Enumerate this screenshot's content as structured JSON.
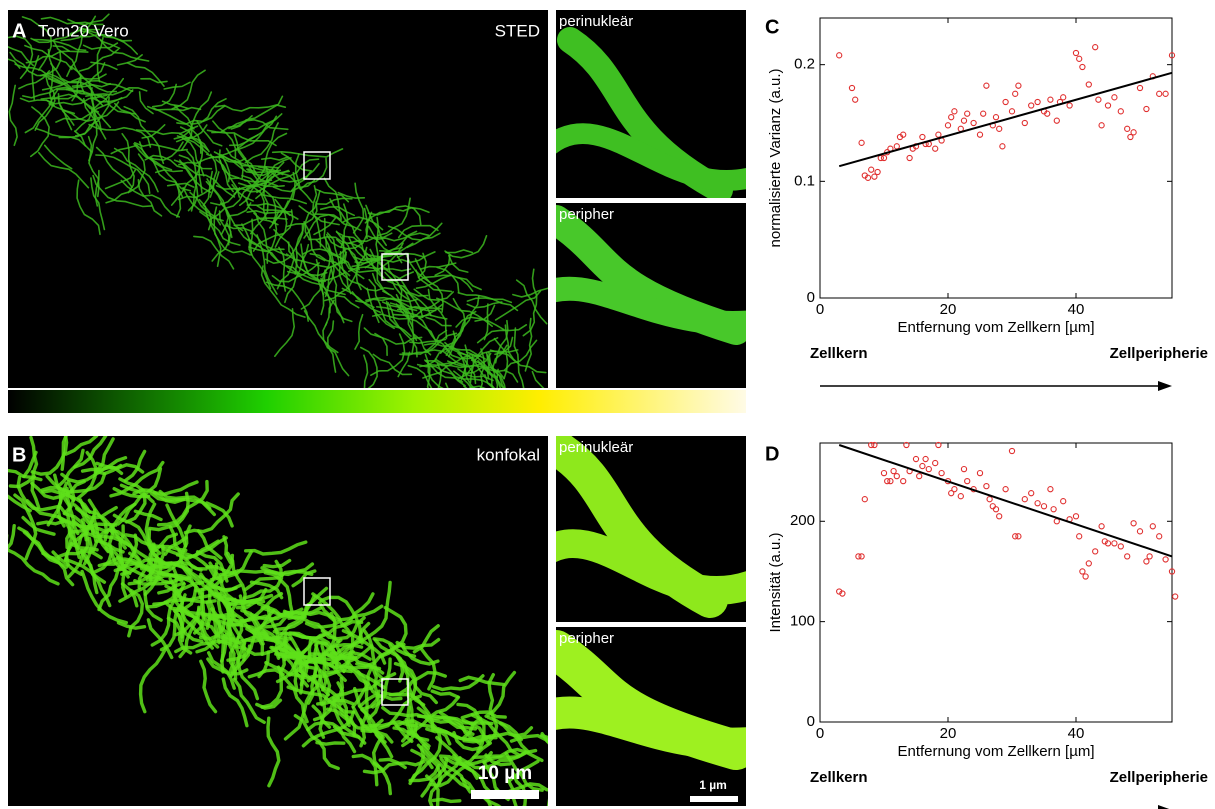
{
  "panels": {
    "A": {
      "letter": "A",
      "title": "Tom20 Vero",
      "method": "STED",
      "inset_top": "perinukleär",
      "inset_bottom": "peripher"
    },
    "B": {
      "letter": "B",
      "method": "konfokal",
      "inset_top": "perinukleär",
      "inset_bottom": "peripher",
      "scale_bar": "10 µm",
      "inset_scale_bar": "1 µm"
    }
  },
  "chart_data": [
    {
      "type": "scatter",
      "panel": "C",
      "x_label": "Entfernung vom Zellkern [µm]",
      "y_label": "normalisierte Varianz (a.u.)",
      "annotations": [
        "Zellkern",
        "Zellperipherie"
      ],
      "xlim": [
        0,
        55
      ],
      "ylim": [
        0,
        0.24
      ],
      "xticks": [
        0,
        20,
        40
      ],
      "yticks": [
        0,
        0.1,
        0.2
      ],
      "color": "#e03030",
      "x": [
        3,
        5,
        5.5,
        6.5,
        7,
        7.5,
        8,
        8.5,
        9,
        9.5,
        10,
        10.5,
        11,
        12,
        12.5,
        13,
        14,
        14.5,
        15,
        16,
        16.5,
        17,
        18,
        18.5,
        19,
        20,
        20.5,
        21,
        22,
        22.5,
        23,
        24,
        25,
        25.5,
        26,
        27,
        27.5,
        28,
        28.5,
        29,
        30,
        30.5,
        31,
        32,
        33,
        34,
        35,
        35.5,
        36,
        37,
        37.5,
        38,
        39,
        40,
        40.5,
        41,
        42,
        43,
        43.5,
        44,
        45,
        46,
        47,
        48,
        48.5,
        49,
        50,
        51,
        52,
        53,
        54,
        55
      ],
      "values": [
        0.208,
        0.18,
        0.17,
        0.133,
        0.105,
        0.103,
        0.11,
        0.104,
        0.108,
        0.12,
        0.12,
        0.125,
        0.128,
        0.13,
        0.138,
        0.14,
        0.12,
        0.128,
        0.13,
        0.138,
        0.132,
        0.132,
        0.128,
        0.14,
        0.135,
        0.148,
        0.155,
        0.16,
        0.145,
        0.152,
        0.158,
        0.15,
        0.14,
        0.158,
        0.182,
        0.148,
        0.155,
        0.145,
        0.13,
        0.168,
        0.16,
        0.175,
        0.182,
        0.15,
        0.165,
        0.168,
        0.16,
        0.158,
        0.17,
        0.152,
        0.168,
        0.172,
        0.165,
        0.21,
        0.205,
        0.198,
        0.183,
        0.215,
        0.17,
        0.148,
        0.165,
        0.172,
        0.16,
        0.145,
        0.138,
        0.142,
        0.18,
        0.162,
        0.19,
        0.175,
        0.175,
        0.208
      ],
      "fit": {
        "x": [
          3,
          55
        ],
        "y": [
          0.113,
          0.193
        ],
        "color": "#000000"
      }
    },
    {
      "type": "scatter",
      "panel": "D",
      "x_label": "Entfernung vom Zellkern [µm]",
      "y_label": "Intensität (a.u.)",
      "annotations": [
        "Zellkern",
        "Zellperipherie"
      ],
      "xlim": [
        0,
        55
      ],
      "ylim": [
        0,
        278
      ],
      "xticks": [
        0,
        20,
        40
      ],
      "yticks": [
        0,
        100,
        200
      ],
      "color": "#e03030",
      "x": [
        3,
        3.5,
        6,
        6.5,
        7,
        8,
        8.5,
        10,
        10.5,
        11,
        11.5,
        12,
        13,
        13.5,
        14,
        15,
        15.5,
        16,
        16.5,
        17,
        18,
        18.5,
        19,
        20,
        20.5,
        21,
        22,
        22.5,
        23,
        24,
        25,
        26,
        26.5,
        27,
        27.5,
        28,
        29,
        30,
        30.5,
        31,
        32,
        33,
        34,
        35,
        36,
        36.5,
        37,
        38,
        39,
        40,
        40.5,
        41,
        41.5,
        42,
        43,
        44,
        44.5,
        45,
        46,
        47,
        48,
        49,
        50,
        51,
        51.5,
        52,
        53,
        54,
        55,
        55.5
      ],
      "values": [
        130,
        128,
        165,
        165,
        222,
        276,
        276,
        248,
        240,
        240,
        250,
        245,
        240,
        276,
        250,
        262,
        245,
        255,
        262,
        252,
        258,
        276,
        248,
        240,
        228,
        232,
        225,
        252,
        240,
        232,
        248,
        235,
        222,
        215,
        212,
        205,
        232,
        270,
        185,
        185,
        222,
        228,
        218,
        215,
        232,
        212,
        200,
        220,
        202,
        205,
        185,
        150,
        145,
        158,
        170,
        195,
        180,
        178,
        178,
        175,
        165,
        198,
        190,
        160,
        165,
        195,
        185,
        162,
        150,
        125
      ],
      "fit": {
        "x": [
          3,
          55
        ],
        "y": [
          276,
          165
        ],
        "color": "#000000"
      }
    }
  ]
}
